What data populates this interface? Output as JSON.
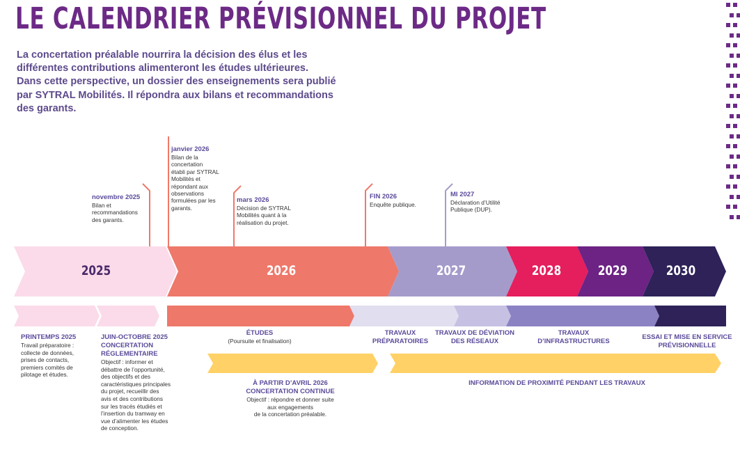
{
  "title": "LE CALENDRIER PRÉVISIONNEL DU PROJET",
  "intro": [
    "La concertation préalable nourrira la décision des élus et les",
    "différentes contributions alimenteront les études ultérieures.",
    "Dans cette perspective, un dossier des enseignements sera publié",
    "par SYTRAL Mobilités. Il répondra aux bilans et recommandations",
    "des garants."
  ],
  "years": [
    {
      "label": "2025",
      "color": "#fbdbe9",
      "text_color": "#4a2a6b"
    },
    {
      "label": "2026",
      "color": "#ee786a",
      "text_color": "#ffffff"
    },
    {
      "label": "2027",
      "color": "#a59bcb",
      "text_color": "#ffffff"
    },
    {
      "label": "2028",
      "color": "#e51e5d",
      "text_color": "#ffffff"
    },
    {
      "label": "2029",
      "color": "#6c2384",
      "text_color": "#ffffff"
    },
    {
      "label": "2030",
      "color": "#2e2258",
      "text_color": "#ffffff"
    }
  ],
  "events": [
    {
      "date": "novembre 2025",
      "text": [
        "Bilan et",
        "recommandations",
        "des garants."
      ]
    },
    {
      "date": "janvier 2026",
      "text": [
        "Bilan de la",
        "concertation",
        "établi par SYTRAL",
        "Mobilités et",
        "répondant aux",
        "observations",
        "formulées par les",
        "garants."
      ]
    },
    {
      "date": "mars 2026",
      "text": [
        "Décision de SYTRAL",
        "Mobilités quant à la",
        "réalisation du projet."
      ]
    },
    {
      "date": "FIN 2026",
      "text": [
        "Enquête publique."
      ]
    },
    {
      "date": "MI 2027",
      "text": [
        "Déclaration d’Utilité",
        "Publique (DUP)."
      ]
    }
  ],
  "phases": {
    "printemps": {
      "title": "PRINTEMPS 2025",
      "text": [
        "Travail préparatoire :",
        "collecte de données,",
        "prises de contacts,",
        "premiers comités de",
        "pilotage et études."
      ]
    },
    "juin": {
      "title": [
        "JUIN-OCTOBRE 2025",
        "CONCERTATION",
        "RÉGLEMENTAIRE"
      ],
      "text": [
        "Objectif : informer et",
        "débattre de l’opportunité,",
        "des objectifs et des",
        "caractéristiques principales",
        "du projet, recueillir des",
        "avis et des contributions",
        "sur les tracés étudiés et",
        "l’insertion du tramway en",
        "vue d’alimenter les études",
        "de conception."
      ]
    },
    "etudes": {
      "title": "ÉTUDES",
      "sub": "(Poursuite et finalisation)"
    },
    "prep": {
      "title": [
        "TRAVAUX",
        "PRÉPARATOIRES"
      ]
    },
    "deviation": {
      "title": [
        "TRAVAUX DE DÉVIATION",
        "DES RÉSEAUX"
      ]
    },
    "infra": {
      "title": [
        "TRAVAUX",
        "D’INFRASTRUCTURES"
      ]
    },
    "essai": {
      "title": [
        "ESSAI ET MISE EN SERVICE",
        "PRÉVISIONNELLE"
      ]
    },
    "continue": {
      "title": [
        "À PARTIR D’AVRIL 2026",
        "CONCERTATION CONTINUE"
      ],
      "text": [
        "Objectif : répondre et donner suite",
        "aux engagements",
        "de la concertation préalable."
      ]
    },
    "info": {
      "title": "INFORMATION DE PROXIMITÉ PENDANT LES TRAVAUX"
    }
  },
  "colors": {
    "title": "#6c2a86",
    "intro": "#5d4a8c",
    "date": "#5b4a9a",
    "yellow": "#ffd166"
  }
}
